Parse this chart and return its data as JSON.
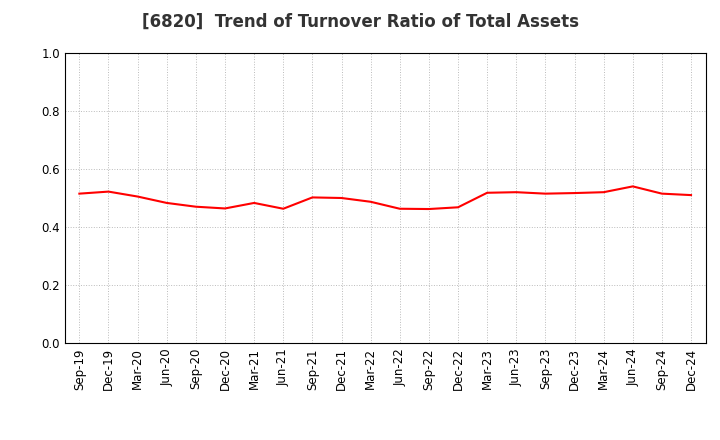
{
  "title": "[6820]  Trend of Turnover Ratio of Total Assets",
  "labels": [
    "Sep-19",
    "Dec-19",
    "Mar-20",
    "Jun-20",
    "Sep-20",
    "Dec-20",
    "Mar-21",
    "Jun-21",
    "Sep-21",
    "Dec-21",
    "Mar-22",
    "Jun-22",
    "Sep-22",
    "Dec-22",
    "Mar-23",
    "Jun-23",
    "Sep-23",
    "Dec-23",
    "Mar-24",
    "Jun-24",
    "Sep-24",
    "Dec-24"
  ],
  "values": [
    0.515,
    0.522,
    0.505,
    0.483,
    0.47,
    0.464,
    0.483,
    0.463,
    0.502,
    0.5,
    0.487,
    0.463,
    0.462,
    0.468,
    0.518,
    0.52,
    0.515,
    0.517,
    0.52,
    0.54,
    0.515,
    0.51
  ],
  "line_color": "#FF0000",
  "line_width": 1.5,
  "ylim": [
    0.0,
    1.0
  ],
  "yticks": [
    0.0,
    0.2,
    0.4,
    0.6,
    0.8,
    1.0
  ],
  "background_color": "#FFFFFF",
  "grid_color": "#BBBBBB",
  "title_fontsize": 12,
  "tick_fontsize": 8.5,
  "spine_color": "#000000"
}
